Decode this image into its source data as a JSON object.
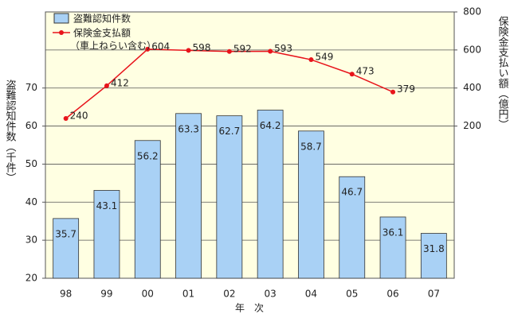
{
  "chart_data": {
    "type": "bar_line",
    "categories": [
      "98",
      "99",
      "00",
      "01",
      "02",
      "03",
      "04",
      "05",
      "06",
      "07"
    ],
    "series": [
      {
        "name": "盗難認知件数",
        "type": "bar",
        "color": "#a9d1f5",
        "values": [
          35.7,
          43.1,
          56.2,
          63.3,
          62.7,
          64.2,
          58.7,
          46.7,
          36.1,
          31.8
        ]
      },
      {
        "name": "保険金支払額",
        "type": "line",
        "axis": "y2",
        "color": "#e8141b",
        "values": [
          240,
          412,
          604,
          598,
          592,
          593,
          549,
          473,
          379,
          null
        ]
      }
    ],
    "legend_note": "（車上ねらい含む）",
    "xlabel": "年　次",
    "ylabel": "盗難認知件数（千件）",
    "y2label": "保険金支払い額（億円）",
    "ylim": [
      20,
      90
    ],
    "yticks": [
      20,
      30,
      40,
      50,
      60,
      70
    ],
    "y2lim": [
      -600,
      800
    ],
    "y2ticks": [
      200,
      400,
      600,
      800
    ],
    "grid_values": [
      30,
      40,
      50,
      60,
      70,
      80
    ],
    "grid": true,
    "legend": "upper left"
  }
}
